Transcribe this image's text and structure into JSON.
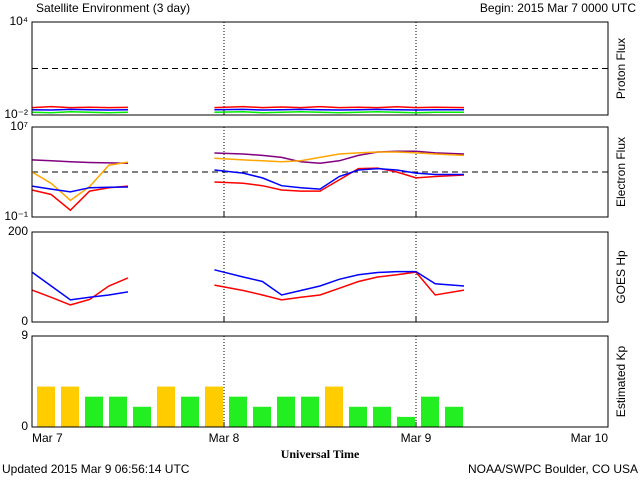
{
  "title": "Satellite Environment (3 day)",
  "begin": "Begin:  2015 Mar 7 0000 UTC",
  "updated": "Updated 2015 Mar  9 06:56:14 UTC",
  "credit": "NOAA/SWPC Boulder, CO USA",
  "x_axis": {
    "label": "Universal Time",
    "xlim": [
      0,
      3
    ],
    "xticks": [
      {
        "value": 0,
        "label": "Mar 7"
      },
      {
        "value": 1,
        "label": "Mar 8"
      },
      {
        "value": 2,
        "label": "Mar 9"
      },
      {
        "value": 3,
        "label": "Mar 10"
      }
    ]
  },
  "chart_data": [
    {
      "type": "line",
      "y_label": "Proton Flux",
      "log_scale": true,
      "ylim": [
        0.01,
        10000
      ],
      "yticks": [
        {
          "value": 0.01,
          "label": "10⁻²"
        },
        {
          "value": 10000,
          "label": "10⁴"
        }
      ],
      "threshold": 10,
      "x": [
        0,
        0.1,
        0.2,
        0.3,
        0.4,
        0.5,
        0.7,
        0.95,
        1.1,
        1.2,
        1.3,
        1.4,
        1.5,
        1.6,
        1.7,
        1.8,
        1.9,
        2.0,
        2.1,
        2.25
      ],
      "series": [
        {
          "color": "#ff0000",
          "values": [
            0.03,
            0.035,
            0.03,
            0.032,
            0.03,
            0.031,
            null,
            0.03,
            0.035,
            0.03,
            0.033,
            0.03,
            0.035,
            0.03,
            0.032,
            0.03,
            0.034,
            0.03,
            0.032,
            0.03
          ]
        },
        {
          "color": "#0000ff",
          "values": [
            0.022,
            0.021,
            0.023,
            0.022,
            0.021,
            0.022,
            null,
            0.022,
            0.023,
            0.021,
            0.022,
            0.023,
            0.022,
            0.021,
            0.022,
            0.023,
            0.022,
            0.021,
            0.022,
            0.022
          ]
        },
        {
          "color": "#00ee00",
          "values": [
            0.015,
            0.014,
            0.016,
            0.015,
            0.014,
            0.015,
            null,
            0.015,
            0.016,
            0.014,
            0.015,
            0.016,
            0.015,
            0.014,
            0.015,
            0.016,
            0.015,
            0.014,
            0.015,
            0.015
          ]
        }
      ]
    },
    {
      "type": "line",
      "y_label": "Electron Flux",
      "log_scale": true,
      "ylim": [
        0.1,
        10000000
      ],
      "yticks": [
        {
          "value": 0.1,
          "label": "10⁻¹"
        },
        {
          "value": 10000000,
          "label": "10⁷"
        }
      ],
      "threshold": 1000,
      "x": [
        0,
        0.1,
        0.2,
        0.3,
        0.4,
        0.5,
        0.7,
        0.95,
        1.1,
        1.2,
        1.3,
        1.4,
        1.5,
        1.6,
        1.7,
        1.8,
        1.9,
        2.0,
        2.1,
        2.25
      ],
      "series": [
        {
          "color": "#800080",
          "values": [
            12000,
            10000,
            8000,
            7000,
            6500,
            6000,
            null,
            49000,
            40000,
            30000,
            20000,
            8000,
            6000,
            10000,
            30000,
            60000,
            70000,
            70000,
            50000,
            40000
          ]
        },
        {
          "color": "#ffa500",
          "values": [
            1000,
            100,
            3,
            50,
            4000,
            7600,
            null,
            17000,
            12000,
            10000,
            8000,
            10000,
            20000,
            40000,
            50000,
            60000,
            60000,
            50000,
            40000,
            30000
          ]
        },
        {
          "color": "#ff0000",
          "values": [
            25,
            10,
            0.4,
            20,
            40,
            56,
            null,
            130,
            100,
            60,
            25,
            20,
            20,
            200,
            2000,
            2200,
            1000,
            300,
            400,
            540
          ]
        },
        {
          "color": "#0000ff",
          "values": [
            56,
            30,
            17,
            40,
            45,
            46,
            null,
            1500,
            800,
            300,
            60,
            40,
            30,
            400,
            1500,
            2000,
            1500,
            800,
            600,
            600
          ]
        }
      ]
    },
    {
      "type": "line",
      "y_label": "GOES Hp",
      "ylim": [
        0,
        200
      ],
      "yticks": [
        0,
        200
      ],
      "x": [
        0,
        0.1,
        0.2,
        0.3,
        0.4,
        0.5,
        0.7,
        0.95,
        1.1,
        1.2,
        1.3,
        1.4,
        1.5,
        1.6,
        1.7,
        1.8,
        1.9,
        2.0,
        2.1,
        2.25
      ],
      "series": [
        {
          "color": "#ff0000",
          "values": [
            71,
            55,
            38,
            50,
            80,
            98,
            null,
            82,
            70,
            60,
            49,
            55,
            60,
            75,
            90,
            100,
            105,
            111,
            60,
            71
          ]
        },
        {
          "color": "#0000ff",
          "values": [
            111,
            80,
            49,
            55,
            60,
            67,
            null,
            116,
            100,
            90,
            60,
            70,
            80,
            95,
            105,
            110,
            112,
            112,
            85,
            80
          ]
        }
      ]
    },
    {
      "type": "bar",
      "y_label": "Estimated Kp",
      "ylim": [
        0,
        9
      ],
      "yticks": [
        0,
        9
      ],
      "x": [
        0,
        0.125,
        0.25,
        0.375,
        0.5,
        0.625,
        0.75,
        0.875,
        1,
        1.125,
        1.25,
        1.375,
        1.5,
        1.625,
        1.75,
        1.875,
        2,
        2.125
      ],
      "values": [
        4,
        4,
        3,
        3,
        2,
        4,
        3,
        4,
        3,
        2,
        3,
        3,
        4,
        2,
        2,
        1,
        3,
        2
      ],
      "colors": [
        "#ffcc00",
        "#ffcc00",
        "#22ee22",
        "#22ee22",
        "#22ee22",
        "#ffcc00",
        "#22ee22",
        "#ffcc00",
        "#22ee22",
        "#22ee22",
        "#22ee22",
        "#22ee22",
        "#ffcc00",
        "#22ee22",
        "#22ee22",
        "#22ee22",
        "#22ee22",
        "#22ee22"
      ]
    }
  ]
}
